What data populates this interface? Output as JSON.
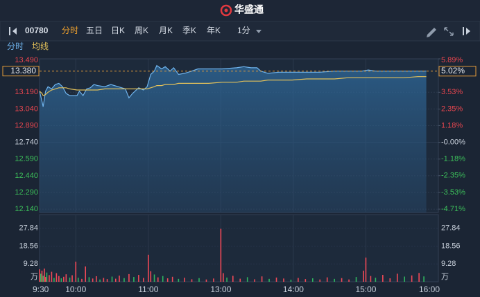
{
  "header": {
    "title": "华盛通"
  },
  "toolbar": {
    "code": "00780",
    "tabs": [
      "分时",
      "五日",
      "日K",
      "周K",
      "月K",
      "季K",
      "年K"
    ],
    "interval": "1分"
  },
  "chart_data": [
    {
      "type": "line",
      "x": [
        0,
        2,
        3,
        5,
        7,
        10,
        13,
        16,
        19,
        22,
        25,
        31,
        33,
        36,
        39,
        42,
        45,
        48,
        54,
        59,
        65,
        71,
        74,
        77,
        82,
        86,
        89,
        92,
        95,
        97,
        101,
        104,
        108,
        111,
        115,
        120,
        126,
        131,
        140,
        151,
        163,
        169,
        175,
        180,
        183,
        189,
        198,
        209,
        221,
        232,
        244,
        255,
        267,
        272,
        278,
        290,
        301,
        313,
        320
      ],
      "xlim": [
        0,
        330
      ],
      "series": [
        {
          "name": "分时",
          "color": "#6fb3ec",
          "values": [
            13.2,
            13.11,
            13.06,
            13.2,
            13.24,
            13.22,
            13.26,
            13.27,
            13.24,
            13.18,
            13.16,
            13.16,
            13.2,
            13.16,
            13.22,
            13.23,
            13.26,
            13.25,
            13.24,
            13.26,
            13.24,
            13.22,
            13.14,
            13.18,
            13.23,
            13.21,
            13.24,
            13.35,
            13.38,
            13.43,
            13.4,
            13.42,
            13.38,
            13.41,
            13.35,
            13.36,
            13.38,
            13.4,
            13.4,
            13.4,
            13.41,
            13.42,
            13.41,
            13.41,
            13.38,
            13.36,
            13.37,
            13.37,
            13.37,
            13.37,
            13.38,
            13.38,
            13.38,
            13.39,
            13.38,
            13.38,
            13.38,
            13.38,
            13.38
          ]
        },
        {
          "name": "均线",
          "color": "#e3c15a",
          "values": [
            13.2,
            13.18,
            13.16,
            13.17,
            13.19,
            13.21,
            13.22,
            13.23,
            13.23,
            13.23,
            13.22,
            13.21,
            13.21,
            13.21,
            13.21,
            13.21,
            13.21,
            13.21,
            13.22,
            13.22,
            13.22,
            13.22,
            13.22,
            13.22,
            13.22,
            13.22,
            13.22,
            13.23,
            13.24,
            13.25,
            13.25,
            13.26,
            13.26,
            13.26,
            13.27,
            13.27,
            13.27,
            13.27,
            13.27,
            13.28,
            13.28,
            13.29,
            13.29,
            13.29,
            13.29,
            13.3,
            13.3,
            13.3,
            13.31,
            13.31,
            13.31,
            13.32,
            13.32,
            13.32,
            13.32,
            13.32,
            13.32,
            13.33,
            13.33
          ]
        }
      ],
      "ylim": [
        12.11,
        13.49
      ],
      "yticks": [
        {
          "value": 13.49,
          "label": "13.490"
        },
        {
          "value": 13.19,
          "label": "13.190"
        },
        {
          "value": 13.04,
          "label": "13.040"
        },
        {
          "value": 12.89,
          "label": "12.890"
        },
        {
          "value": 12.74,
          "label": "12.740"
        },
        {
          "value": 12.59,
          "label": "12.590"
        },
        {
          "value": 12.44,
          "label": "12.440"
        },
        {
          "value": 12.29,
          "label": "12.290"
        },
        {
          "value": 12.14,
          "label": "12.140"
        }
      ],
      "y2lim": [
        -4.95,
        5.89
      ],
      "y2ticks": [
        {
          "value": 5.89,
          "label": "5.89%"
        },
        {
          "value": 3.53,
          "label": "3.53%"
        },
        {
          "value": 2.35,
          "label": "2.35%"
        },
        {
          "value": 1.18,
          "label": "1.18%"
        },
        {
          "value": 0,
          "label": "-0.00%"
        },
        {
          "value": -1.18,
          "label": "-1.18%"
        },
        {
          "value": -2.35,
          "label": "-2.35%"
        },
        {
          "value": -3.53,
          "label": "-3.53%"
        },
        {
          "value": -4.71,
          "label": "-4.71%"
        }
      ],
      "last_price": {
        "value": 13.38,
        "label": "13.380"
      },
      "last_change": {
        "value": 5.02,
        "label": "5.02%"
      },
      "grid": true
    },
    {
      "type": "bar",
      "x": [
        0,
        1,
        2,
        3,
        4,
        5,
        6,
        8,
        10,
        12,
        14,
        16,
        18,
        20,
        22,
        25,
        27,
        30,
        32,
        35,
        38,
        41,
        44,
        47,
        50,
        53,
        56,
        60,
        63,
        66,
        70,
        74,
        78,
        82,
        86,
        90,
        92,
        95,
        98,
        102,
        106,
        110,
        115,
        120,
        126,
        132,
        138,
        144,
        150,
        152,
        155,
        160,
        166,
        172,
        178,
        184,
        190,
        196,
        202,
        208,
        214,
        220,
        226,
        232,
        238,
        244,
        250,
        256,
        262,
        268,
        270,
        274,
        278,
        284,
        290,
        296,
        302,
        308,
        314,
        318
      ],
      "values": [
        6.5,
        4.2,
        5.8,
        3.1,
        6.9,
        2.5,
        4.8,
        3.5,
        5.2,
        2.0,
        4.5,
        3.0,
        1.8,
        2.6,
        3.9,
        2.2,
        3.4,
        10.5,
        2.1,
        1.5,
        8.0,
        2.4,
        1.7,
        2.9,
        1.2,
        2.0,
        1.4,
        2.7,
        1.6,
        3.2,
        1.9,
        4.0,
        2.5,
        3.6,
        2.0,
        14.1,
        5.5,
        3.8,
        2.3,
        3.0,
        1.8,
        2.6,
        1.5,
        2.1,
        1.3,
        1.9,
        1.2,
        1.7,
        27.6,
        4.5,
        2.2,
        3.1,
        1.6,
        2.4,
        1.3,
        2.8,
        1.5,
        2.2,
        1.7,
        1.1,
        2.0,
        1.4,
        1.8,
        1.2,
        2.3,
        1.5,
        1.9,
        1.2,
        2.5,
        5.8,
        12.6,
        3.0,
        2.1,
        3.6,
        1.8,
        4.2,
        2.7,
        3.3,
        4.6,
        2.8
      ],
      "colors": [
        "#f24957",
        "#2fb45f",
        "#f24957",
        "#2fb45f",
        "#f24957",
        "#f24957",
        "#2fb45f",
        "#f24957",
        "#f24957",
        "#2fb45f",
        "#f24957",
        "#f24957",
        "#2fb45f",
        "#f24957",
        "#f24957",
        "#2fb45f",
        "#f24957",
        "#f24957",
        "#2fb45f",
        "#f24957",
        "#f24957",
        "#2fb45f",
        "#f24957",
        "#f24957",
        "#2fb45f",
        "#f24957",
        "#f24957",
        "#2fb45f",
        "#f24957",
        "#f24957",
        "#2fb45f",
        "#f24957",
        "#2fb45f",
        "#f24957",
        "#f24957",
        "#f24957",
        "#f24957",
        "#2fb45f",
        "#f24957",
        "#2fb45f",
        "#f24957",
        "#f24957",
        "#2fb45f",
        "#f24957",
        "#f24957",
        "#2fb45f",
        "#f24957",
        "#f24957",
        "#f24957",
        "#f24957",
        "#2fb45f",
        "#f24957",
        "#f24957",
        "#2fb45f",
        "#f24957",
        "#f24957",
        "#2fb45f",
        "#f24957",
        "#f24957",
        "#2fb45f",
        "#f24957",
        "#f24957",
        "#2fb45f",
        "#f24957",
        "#f24957",
        "#2fb45f",
        "#f24957",
        "#f24957",
        "#2fb45f",
        "#f24957",
        "#f24957",
        "#f24957",
        "#2fb45f",
        "#f24957",
        "#f24957",
        "#f24957",
        "#2fb45f",
        "#f24957",
        "#f24957",
        "#2fb45f"
      ],
      "xlim": [
        0,
        330
      ],
      "xticks": [
        {
          "value": 0,
          "label": "9:30"
        },
        {
          "value": 30,
          "label": "10:00"
        },
        {
          "value": 90,
          "label": "11:00"
        },
        {
          "value": 150,
          "label": "13:00"
        },
        {
          "value": 210,
          "label": "14:00"
        },
        {
          "value": 270,
          "label": "15:00"
        },
        {
          "value": 330,
          "label": "16:00"
        }
      ],
      "ylim": [
        0,
        35
      ],
      "yticks": [
        9.28,
        18.56,
        27.84
      ],
      "unit": "万",
      "grid": true
    }
  ]
}
